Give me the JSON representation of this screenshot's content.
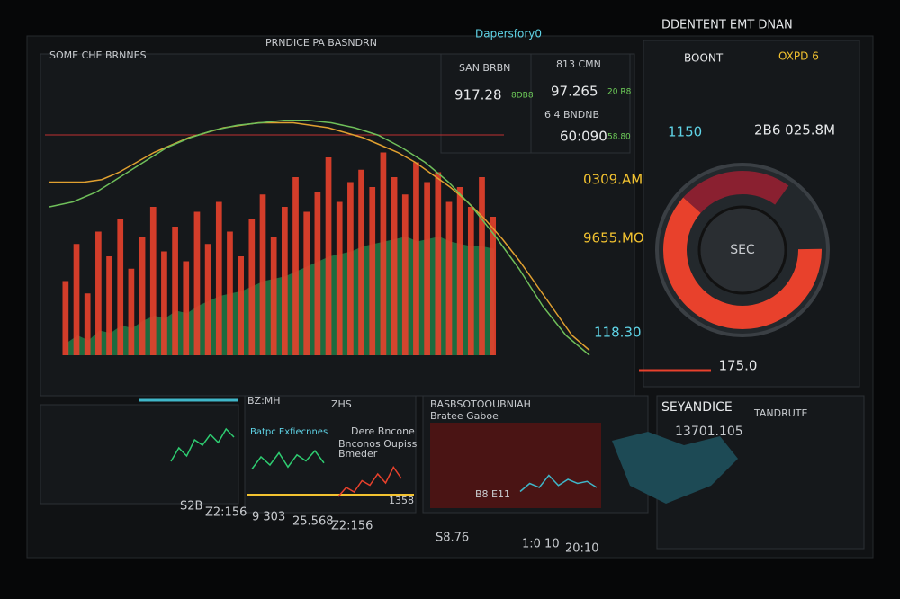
{
  "header": {
    "left": "SOME CHE BRNNES",
    "title": "PRNDICE PA BASNDRN",
    "subtitle": "Dapersfory0",
    "right": "DDENTENT EMT DNAN"
  },
  "stats": [
    {
      "label": "SAN BRBN",
      "value": "917.28",
      "change": "8DB8"
    },
    {
      "label": "813 CMN",
      "value": "97.265",
      "change": "20 R8"
    },
    {
      "label": "6 4 BNDNB",
      "value": "60:090",
      "change": "58.80"
    }
  ],
  "side_values": [
    "0309.AM",
    "9655.MO",
    "118.30"
  ],
  "main_chart": {
    "type": "bar",
    "ylim": [
      0,
      100
    ],
    "bars": {
      "color": "#e8412c",
      "values": [
        30,
        45,
        25,
        50,
        40,
        55,
        35,
        48,
        60,
        42,
        52,
        38,
        58,
        45,
        62,
        50,
        40,
        55,
        65,
        48,
        60,
        72,
        58,
        66,
        80,
        62,
        70,
        75,
        68,
        82,
        72,
        65,
        78,
        70,
        74,
        62,
        68,
        60,
        72,
        56
      ]
    },
    "area": {
      "color": "#1f7a45",
      "values": [
        5,
        8,
        6,
        10,
        9,
        12,
        11,
        14,
        16,
        15,
        18,
        17,
        20,
        22,
        24,
        25,
        26,
        28,
        30,
        31,
        32,
        34,
        36,
        38,
        40,
        41,
        42,
        44,
        45,
        46,
        47,
        48,
        46,
        47,
        48,
        46,
        45,
        44,
        44,
        43
      ]
    },
    "lines": [
      {
        "color": "#e0a030",
        "values": [
          70,
          70,
          70,
          71,
          74,
          78,
          82,
          85,
          88,
          90,
          92,
          93,
          94,
          94,
          94,
          93,
          92,
          90,
          88,
          85,
          82,
          78,
          73,
          68,
          62,
          55,
          47,
          38,
          28,
          18,
          8,
          2
        ]
      },
      {
        "color": "#6fbf5a",
        "values": [
          60,
          62,
          66,
          72,
          78,
          84,
          88,
          91,
          93,
          94,
          95,
          95,
          94,
          92,
          89,
          84,
          78,
          70,
          60,
          48,
          35,
          20,
          8,
          0
        ]
      }
    ]
  },
  "gauge": {
    "title": "BOONT",
    "title_right": "OXPD 6",
    "left": "1150",
    "right": "2B6 025.8M",
    "center": "SEC",
    "value": "175.0"
  },
  "bottom": {
    "panel1": {
      "title": "BZ:MH",
      "values": [
        "S2B",
        "Z2:156"
      ]
    },
    "panel2": {
      "title": "Batpc Exfiecnnes",
      "sub": "Dere Bncone",
      "sub2": "Bnconos Oupiss",
      "sub3": "Bmeder",
      "tag": "ZHS",
      "values": [
        "9 303",
        "1358",
        "25.568",
        "Z2:156"
      ]
    },
    "panel3": {
      "title": "BASBSOTOOUBNIAH",
      "sub": "Bratee Gaboe",
      "value": "B8 E11",
      "values": [
        "S8.76",
        "1:0 10",
        "20:10"
      ]
    },
    "panel4": {
      "title": "SEYANDICE",
      "value": "13701.105",
      "right": "TANDRUTE"
    }
  },
  "mini_charts": [
    {
      "color": "#2ecc71",
      "values": [
        20,
        45,
        30,
        60,
        50,
        70,
        55,
        80,
        65
      ]
    },
    {
      "color": "#2ecc71",
      "values": [
        30,
        60,
        40,
        70,
        35,
        65,
        50,
        75,
        45
      ]
    },
    {
      "color": "#e8412c",
      "values": [
        20,
        40,
        30,
        55,
        45,
        70,
        50,
        85,
        60
      ]
    },
    {
      "color": "#3fb6c9",
      "values": [
        30,
        50,
        40,
        70,
        45,
        60,
        50,
        55,
        40
      ]
    }
  ]
}
